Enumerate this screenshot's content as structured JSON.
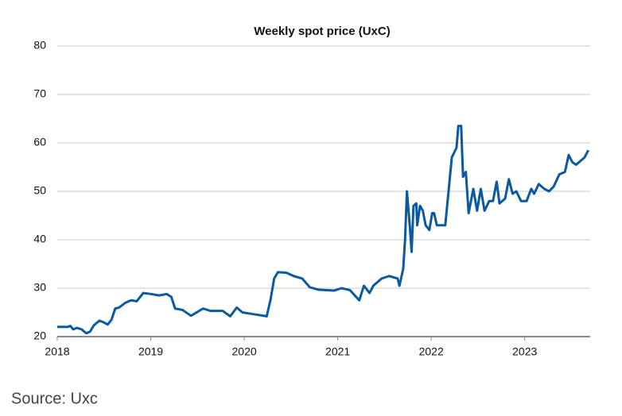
{
  "chart_data": {
    "type": "line",
    "title": "Weekly spot price (UxC)",
    "source": "Source: Uxc",
    "x": [
      2018.0,
      2018.11,
      2018.14,
      2018.17,
      2018.21,
      2018.26,
      2018.31,
      2018.35,
      2018.39,
      2018.45,
      2018.49,
      2018.54,
      2018.58,
      2018.62,
      2018.66,
      2018.73,
      2018.79,
      2018.85,
      2018.92,
      2019.0,
      2019.09,
      2019.17,
      2019.22,
      2019.26,
      2019.34,
      2019.43,
      2019.56,
      2019.64,
      2019.77,
      2019.85,
      2019.92,
      2019.98,
      2020.11,
      2020.24,
      2020.28,
      2020.32,
      2020.36,
      2020.45,
      2020.53,
      2020.62,
      2020.7,
      2020.79,
      2020.96,
      2021.04,
      2021.13,
      2021.23,
      2021.28,
      2021.34,
      2021.38,
      2021.47,
      2021.55,
      2021.64,
      2021.66,
      2021.7,
      2021.72,
      2021.74,
      2021.77,
      2021.79,
      2021.81,
      2021.84,
      2021.85,
      2021.88,
      2021.91,
      2021.94,
      2021.98,
      2022.01,
      2022.03,
      2022.06,
      2022.11,
      2022.15,
      2022.18,
      2022.22,
      2022.27,
      2022.29,
      2022.32,
      2022.34,
      2022.37,
      2022.4,
      2022.45,
      2022.49,
      2022.53,
      2022.57,
      2022.62,
      2022.66,
      2022.7,
      2022.73,
      2022.79,
      2022.83,
      2022.87,
      2022.91,
      2022.96,
      2023.02,
      2023.07,
      2023.1,
      2023.15,
      2023.21,
      2023.26,
      2023.31,
      2023.37,
      2023.43,
      2023.47,
      2023.51,
      2023.55,
      2023.64,
      2023.68
    ],
    "series": [
      {
        "name": "Weekly spot price",
        "color": "#0b5aa0",
        "values": [
          22,
          22,
          22.2,
          21.5,
          21.8,
          21.5,
          20.7,
          21,
          22.3,
          23.3,
          23,
          22.5,
          23.5,
          25.8,
          26,
          27,
          27.5,
          27.3,
          29,
          28.8,
          28.5,
          28.8,
          28.2,
          25.8,
          25.5,
          24.3,
          25.8,
          25.3,
          25.3,
          24.2,
          26,
          25,
          24.6,
          24.2,
          27.5,
          32,
          33.3,
          33.2,
          32.5,
          32,
          30.2,
          29.7,
          29.5,
          30,
          29.6,
          27.5,
          30.5,
          29,
          30.5,
          32,
          32.5,
          32,
          30.5,
          34,
          40,
          50,
          43,
          37.5,
          47,
          47.5,
          43,
          47,
          46,
          43,
          42,
          45.5,
          45.5,
          43,
          43,
          43,
          49,
          57,
          59,
          63.5,
          63.5,
          53,
          54,
          45.5,
          50.5,
          46,
          50.5,
          46,
          48,
          48,
          52,
          47.5,
          48.5,
          52.5,
          49.5,
          50,
          48,
          48,
          50.5,
          49.5,
          51.5,
          50.5,
          50,
          51,
          53.5,
          54,
          57.5,
          56,
          55.5,
          57,
          58.5
        ]
      }
    ],
    "xlim": [
      2018,
      2023.7
    ],
    "xticks": [
      2018,
      2019,
      2020,
      2021,
      2022,
      2023
    ],
    "ylim": [
      20,
      80
    ],
    "yticks": [
      20,
      30,
      40,
      50,
      60,
      70,
      80
    ],
    "grid": true
  }
}
